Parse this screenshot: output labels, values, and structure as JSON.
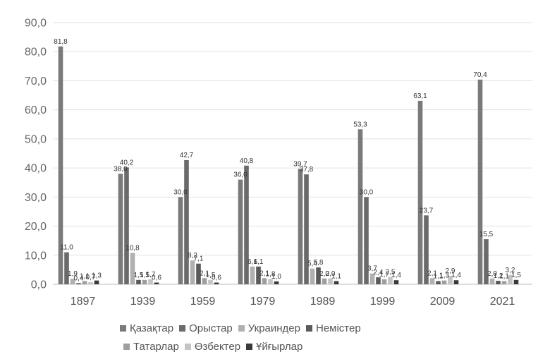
{
  "chart_data": {
    "type": "bar",
    "title": "",
    "xlabel": "",
    "ylabel": "",
    "ylim": [
      0,
      90
    ],
    "yticks": [
      "0,0",
      "10,0",
      "20,0",
      "30,0",
      "40,0",
      "50,0",
      "60,0",
      "70,0",
      "80,0",
      "90,0"
    ],
    "grid": true,
    "legend_position": "bottom",
    "categories": [
      "1897",
      "1939",
      "1959",
      "1979",
      "1989",
      "1999",
      "2009",
      "2021"
    ],
    "series": [
      {
        "name": "Қазақтар",
        "color": "#7a7a7a",
        "values": [
          81.8,
          38.0,
          30.0,
          36.0,
          39.7,
          53.3,
          63.1,
          70.4
        ],
        "labels": [
          "81,8",
          "38,0",
          "30,0",
          "36,0",
          "39,7",
          "53,3",
          "63,1",
          "70,4"
        ]
      },
      {
        "name": "Орыстар",
        "color": "#6a6a6a",
        "values": [
          11.0,
          40.2,
          42.7,
          40.8,
          37.8,
          30.0,
          23.7,
          15.5
        ],
        "labels": [
          "11,0",
          "40,2",
          "42,7",
          "40,8",
          "37,8",
          "30,0",
          "23,7",
          "15,5"
        ]
      },
      {
        "name": "Украиндер",
        "color": "#b0b0b0",
        "values": [
          1.9,
          10.8,
          8.2,
          6.1,
          5.4,
          3.7,
          2.1,
          2.0
        ],
        "labels": [
          "1,9",
          "10,8",
          "8,2",
          "6,1",
          "5,4",
          "3,7",
          "2,1",
          "2,0"
        ]
      },
      {
        "name": "Немістер",
        "color": "#5a5a5a",
        "values": [
          0.4,
          1.5,
          7.1,
          6.1,
          5.8,
          2.4,
          1.1,
          1.2
        ],
        "labels": [
          "0,4",
          "1,5",
          "7,1",
          "6,1",
          "5,8",
          "2,4",
          "1,1",
          "1,2"
        ]
      },
      {
        "name": "Татарлар",
        "color": "#9e9e9e",
        "values": [
          1.1,
          1.5,
          2.1,
          2.1,
          2.0,
          1.7,
          1.3,
          1.1
        ],
        "labels": [
          "1,1",
          "1,5",
          "2,1",
          "2,1",
          "2,0",
          "1,7",
          "1,3",
          "1,1"
        ]
      },
      {
        "name": "Өзбектер",
        "color": "#c4c4c4",
        "values": [
          0.7,
          1.7,
          1.5,
          1.8,
          2.0,
          2.5,
          2.9,
          3.2
        ],
        "labels": [
          "0,7",
          "1,7",
          "1,5",
          "1,8",
          "2,0",
          "2,5",
          "2,9",
          "3,2"
        ]
      },
      {
        "name": "Ұйғырлар",
        "color": "#3a3a3a",
        "values": [
          1.3,
          0.6,
          0.6,
          1.0,
          1.1,
          1.4,
          1.4,
          1.5
        ],
        "labels": [
          "1,3",
          "0,6",
          "0,6",
          "1,0",
          "1,1",
          "1,4",
          "1,4",
          "1,5"
        ]
      }
    ]
  }
}
